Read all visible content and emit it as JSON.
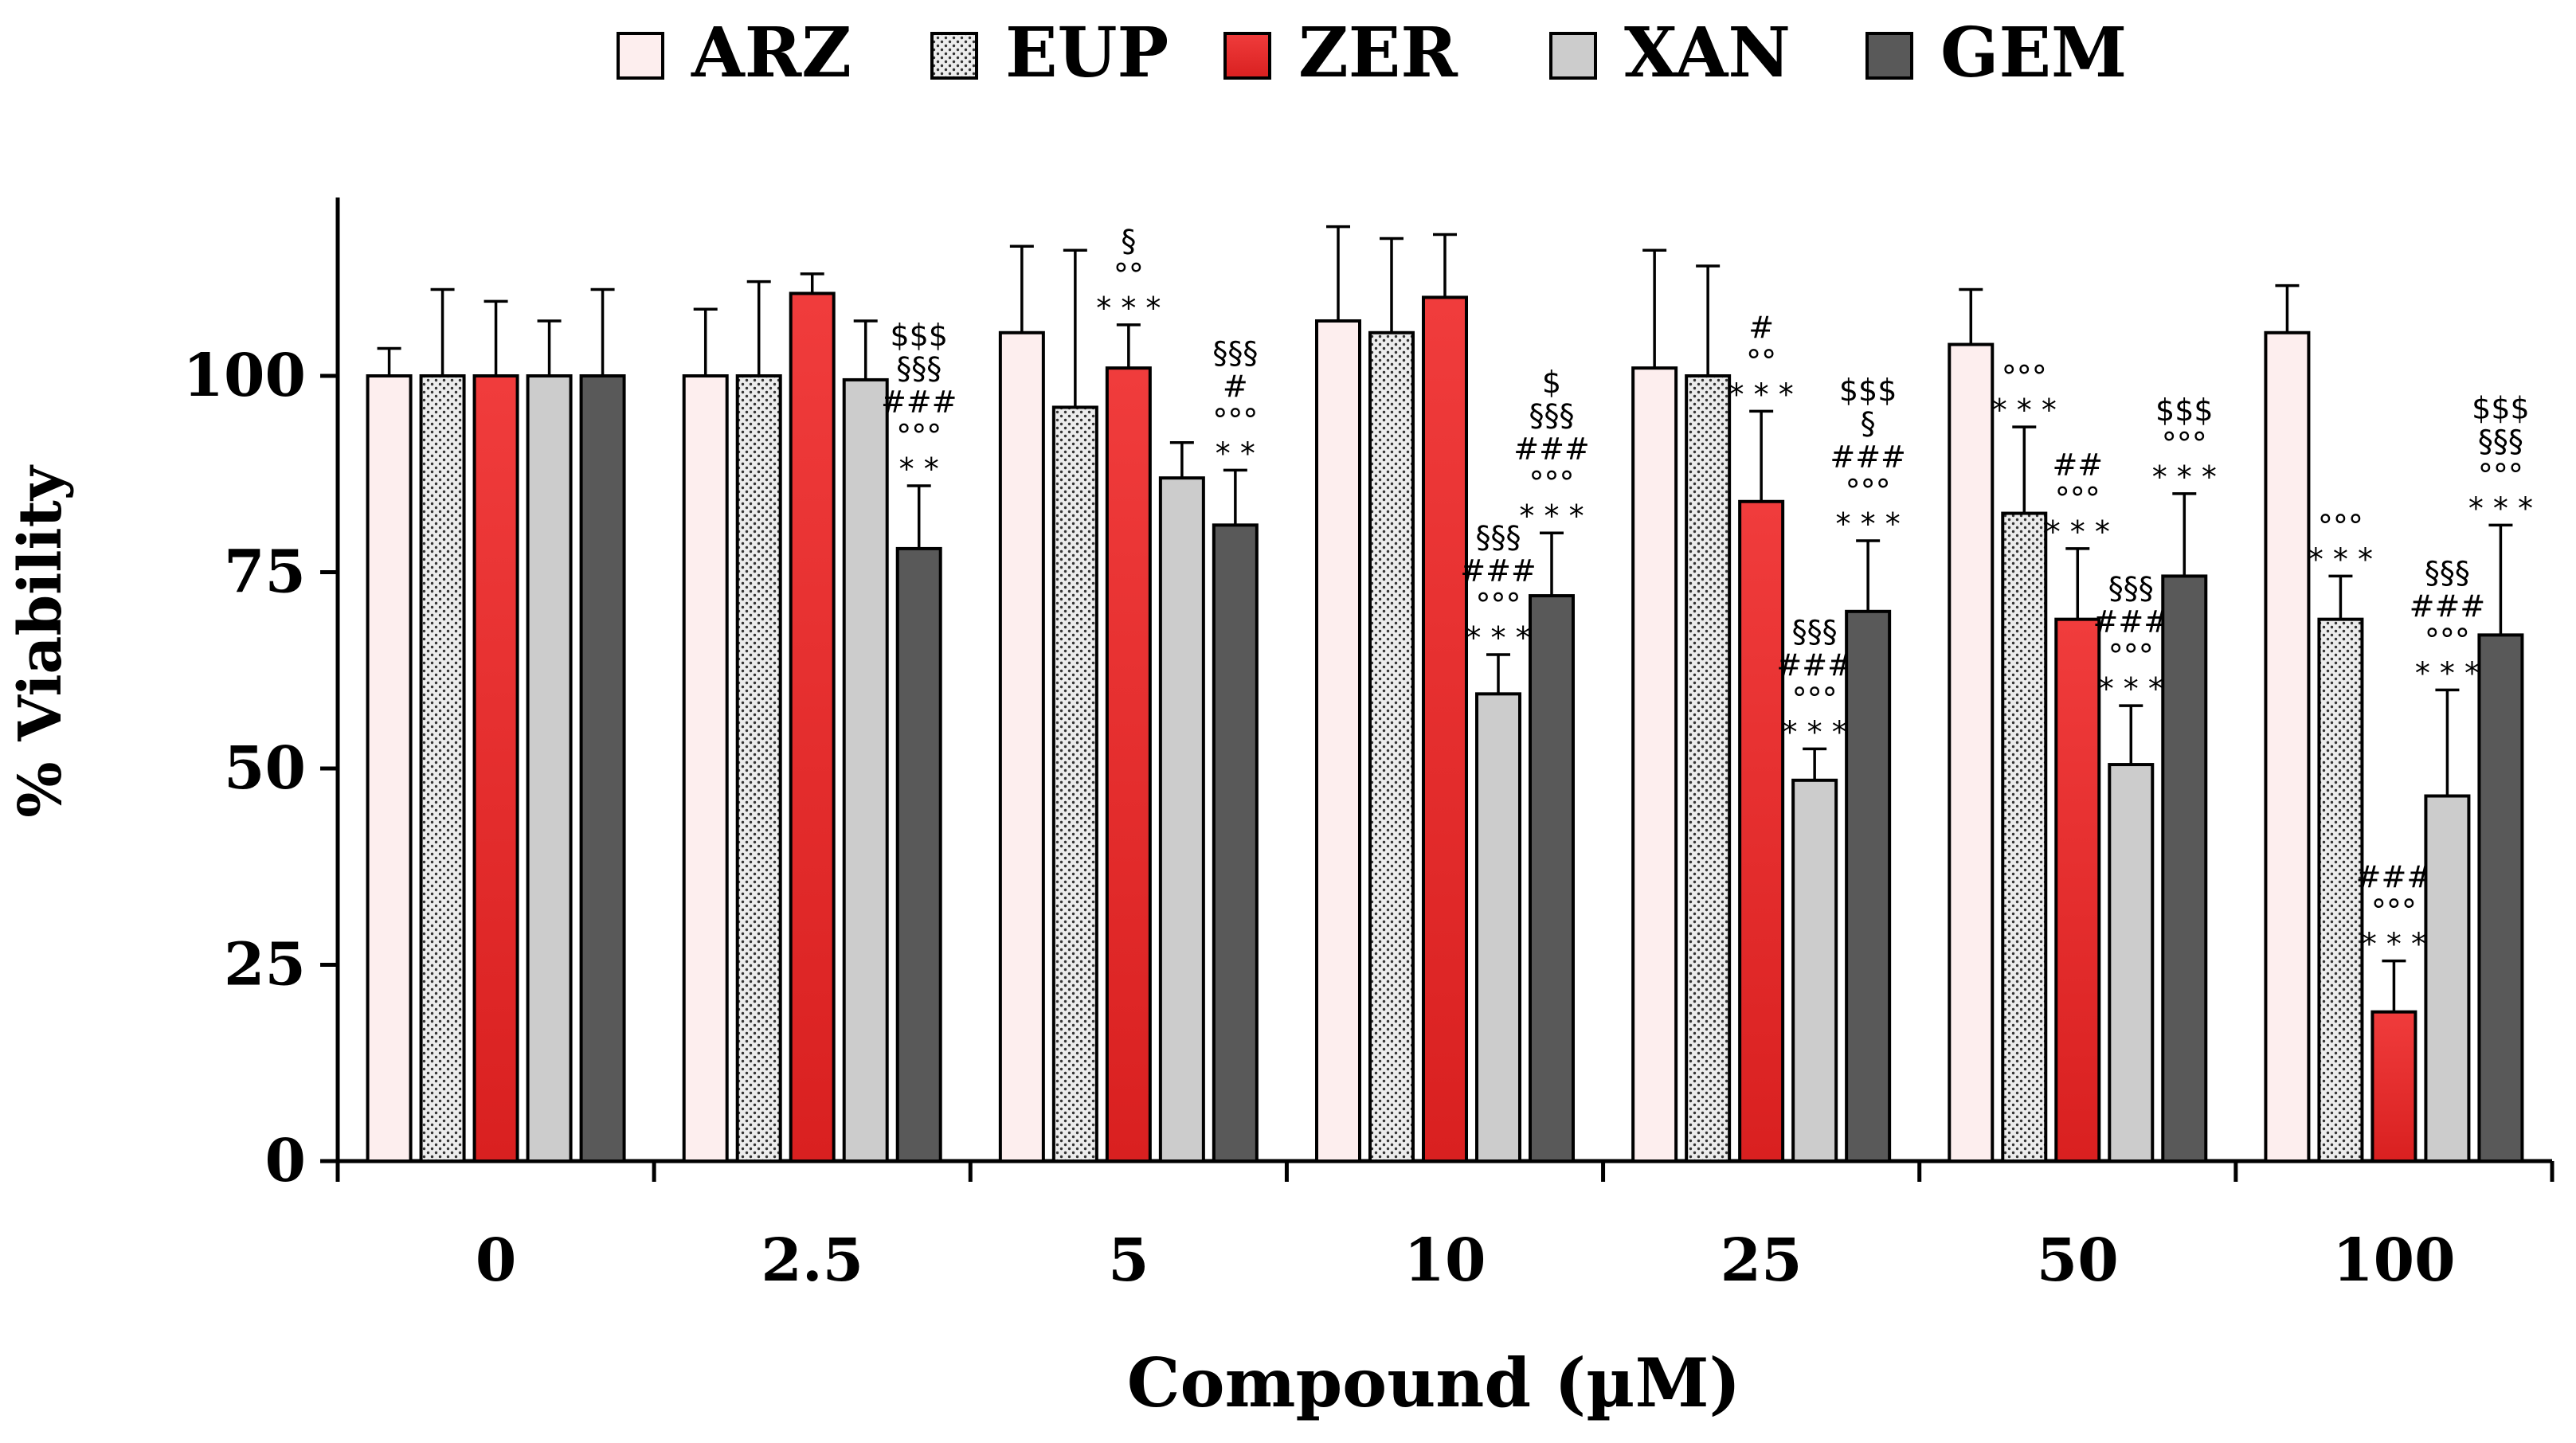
{
  "chart_data": {
    "type": "bar",
    "title": "",
    "xlabel": "Compound (µM)",
    "ylabel": "% Viability",
    "ylim": [
      0,
      125
    ],
    "yticks": [
      "0",
      "25",
      "50",
      "75",
      "100"
    ],
    "categories": [
      "0",
      "2.5",
      "5",
      "10",
      "25",
      "50",
      "100"
    ],
    "series": [
      {
        "name": "ARZ",
        "color": "#fdeeee",
        "pattern": "solid",
        "values": [
          100,
          100,
          105.5,
          107,
          101,
          104,
          105.5
        ],
        "errors": [
          3.5,
          8.5,
          11,
          12,
          15,
          7,
          6
        ],
        "annotations": [
          [],
          [],
          [],
          [],
          [],
          [],
          []
        ]
      },
      {
        "name": "EUP",
        "color": "#e6e6e6",
        "pattern": "dotted",
        "values": [
          100,
          100,
          96,
          105.5,
          100,
          82.5,
          69
        ],
        "errors": [
          11,
          12,
          20,
          12,
          14,
          11,
          5.5
        ],
        "annotations": [
          [],
          [],
          [],
          [],
          [],
          [
            "°°°",
            "* * *"
          ],
          [
            "°°°",
            "* * *"
          ]
        ]
      },
      {
        "name": "ZER",
        "color": "#ee3535",
        "pattern": "solid",
        "values": [
          100,
          110.5,
          101,
          110,
          84,
          69,
          19
        ],
        "errors": [
          9.5,
          2.5,
          5.5,
          8,
          11.5,
          9,
          6.5
        ],
        "annotations": [
          [],
          [],
          [
            "§",
            "°°",
            "* * *"
          ],
          [],
          [
            "#",
            "°°",
            "* * *"
          ],
          [
            "##",
            "°°°",
            "* * *"
          ],
          [
            "###",
            "°°°",
            "* * *"
          ]
        ]
      },
      {
        "name": "XAN",
        "color": "#cccccc",
        "pattern": "solid",
        "values": [
          100,
          99.5,
          87,
          59.5,
          48.5,
          50.5,
          46.5
        ],
        "errors": [
          7,
          7.5,
          4.5,
          5,
          4,
          7.5,
          13.5
        ],
        "annotations": [
          [],
          [],
          [],
          [
            "§§§",
            "###",
            "°°°",
            "* * *"
          ],
          [
            "§§§",
            "###",
            "°°°",
            "* * *"
          ],
          [
            "§§§",
            "###",
            "°°°",
            "* * *"
          ],
          [
            "§§§",
            "###",
            "°°°",
            "* * *"
          ]
        ]
      },
      {
        "name": "GEM",
        "color": "#595959",
        "pattern": "solid",
        "values": [
          100,
          78,
          81,
          72,
          70,
          74.5,
          67
        ],
        "errors": [
          11,
          8,
          7,
          8,
          9,
          10.5,
          14
        ],
        "annotations": [
          [],
          [
            "$$$",
            "§§§",
            "###",
            "°°°",
            "* *"
          ],
          [
            "§§§",
            "#",
            "°°°",
            "* *"
          ],
          [
            "$",
            "§§§",
            "###",
            "°°°",
            "* * *"
          ],
          [
            "$$$",
            "§",
            "###",
            "°°°",
            "* * *"
          ],
          [
            "$$$",
            "°°°",
            "* * *"
          ],
          [
            "$$$",
            "§§§",
            "°°°",
            "* * *"
          ]
        ]
      }
    ],
    "legend": {
      "position": "top-center"
    },
    "grid": false
  }
}
